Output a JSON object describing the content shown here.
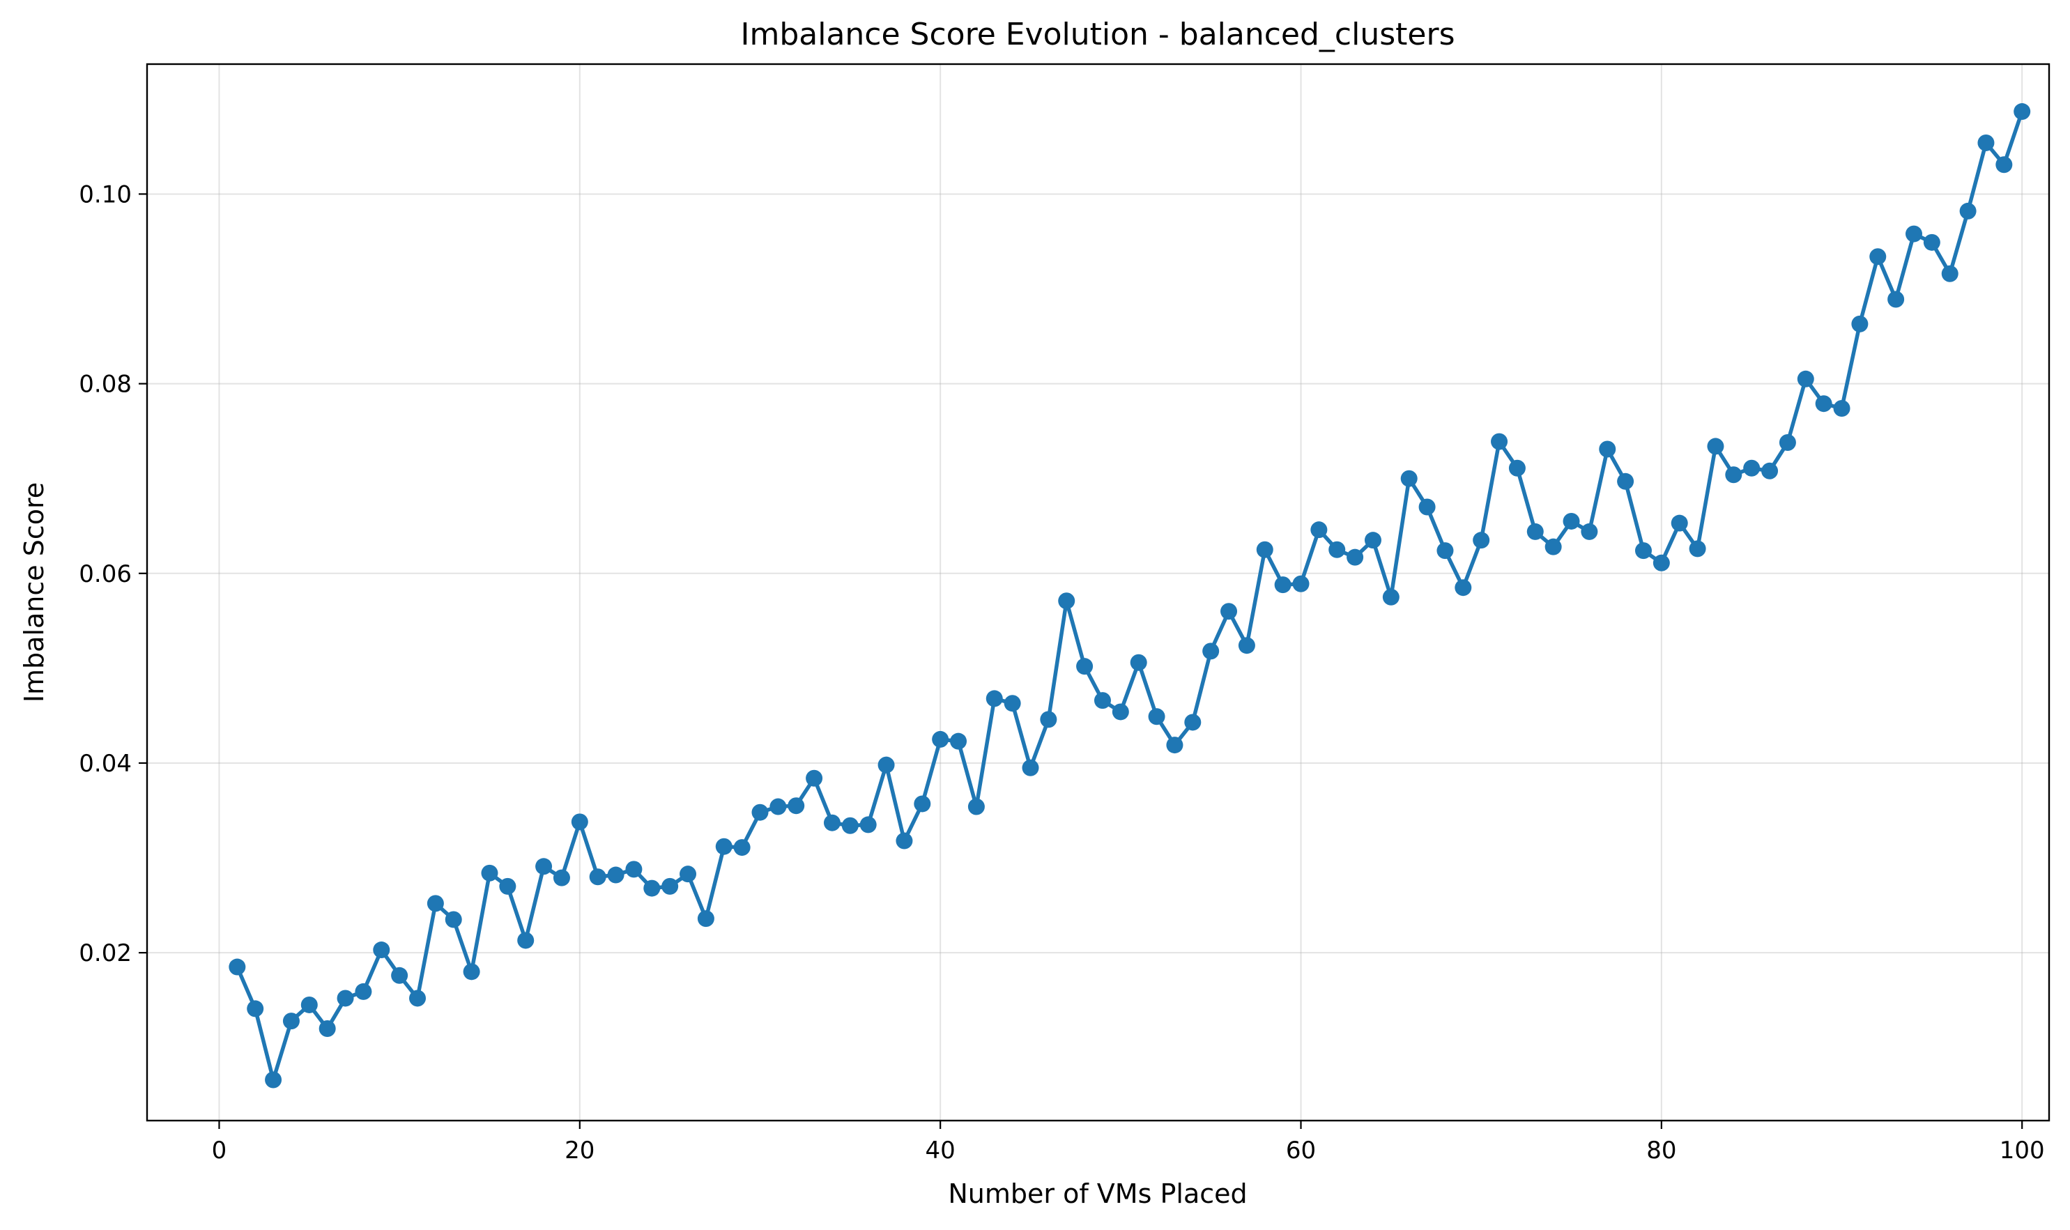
{
  "colors": {
    "series": "#1f77b4",
    "background": "#ffffff",
    "grid": "#b0b0b0"
  },
  "chart_data": {
    "type": "line",
    "title": "Imbalance Score Evolution - balanced_clusters",
    "xlabel": "Number of VMs Placed",
    "ylabel": "Imbalance Score",
    "xlim": [
      -4,
      101.5
    ],
    "ylim": [
      0.0023,
      0.1137
    ],
    "xticks": [
      0,
      20,
      40,
      60,
      80,
      100
    ],
    "xtick_labels": [
      "0",
      "20",
      "40",
      "60",
      "80",
      "100"
    ],
    "yticks": [
      0.02,
      0.04,
      0.06,
      0.08,
      0.1
    ],
    "ytick_labels": [
      "0.02",
      "0.04",
      "0.06",
      "0.08",
      "0.10"
    ],
    "grid": true,
    "marker": "circle",
    "series": [
      {
        "name": "Imbalance Score",
        "x": [
          1,
          2,
          3,
          4,
          5,
          6,
          7,
          8,
          9,
          10,
          11,
          12,
          13,
          14,
          15,
          16,
          17,
          18,
          19,
          20,
          21,
          22,
          23,
          24,
          25,
          26,
          27,
          28,
          29,
          30,
          31,
          32,
          33,
          34,
          35,
          36,
          37,
          38,
          39,
          40,
          41,
          42,
          43,
          44,
          45,
          46,
          47,
          48,
          49,
          50,
          51,
          52,
          53,
          54,
          55,
          56,
          57,
          58,
          59,
          60,
          61,
          62,
          63,
          64,
          65,
          66,
          67,
          68,
          69,
          70,
          71,
          72,
          73,
          74,
          75,
          76,
          77,
          78,
          79,
          80,
          81,
          82,
          83,
          84,
          85,
          86,
          87,
          88,
          89,
          90,
          91,
          92,
          93,
          94,
          95,
          96,
          97,
          98,
          99,
          100
        ],
        "values": [
          0.0185,
          0.0141,
          0.0066,
          0.0128,
          0.0145,
          0.012,
          0.0152,
          0.0159,
          0.0203,
          0.0176,
          0.0152,
          0.0252,
          0.0235,
          0.018,
          0.0284,
          0.027,
          0.0213,
          0.0291,
          0.0279,
          0.0338,
          0.028,
          0.0282,
          0.0288,
          0.0268,
          0.027,
          0.0283,
          0.0236,
          0.0312,
          0.0311,
          0.0348,
          0.0354,
          0.0355,
          0.0384,
          0.0337,
          0.0334,
          0.0335,
          0.0398,
          0.0318,
          0.0357,
          0.0425,
          0.0423,
          0.0354,
          0.0468,
          0.0463,
          0.0395,
          0.0446,
          0.0571,
          0.0502,
          0.0466,
          0.0454,
          0.0506,
          0.0449,
          0.0419,
          0.0443,
          0.0518,
          0.056,
          0.0524,
          0.0625,
          0.0588,
          0.0589,
          0.0646,
          0.0625,
          0.0617,
          0.0635,
          0.0575,
          0.07,
          0.067,
          0.0624,
          0.0585,
          0.0635,
          0.0739,
          0.0711,
          0.0644,
          0.0628,
          0.0655,
          0.0644,
          0.0731,
          0.0697,
          0.0624,
          0.0611,
          0.0653,
          0.0626,
          0.0734,
          0.0704,
          0.0711,
          0.0708,
          0.0738,
          0.0805,
          0.0779,
          0.0774,
          0.0863,
          0.0934,
          0.0889,
          0.0958,
          0.0949,
          0.0916,
          0.0982,
          0.1054,
          0.1031,
          0.1087
        ]
      }
    ]
  }
}
